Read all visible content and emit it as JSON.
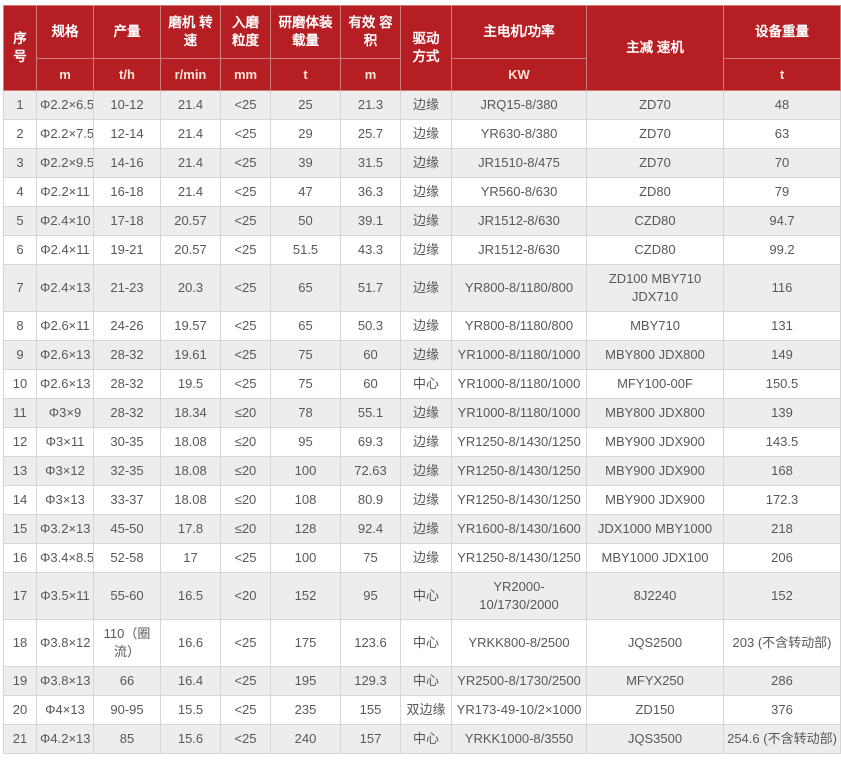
{
  "theme": {
    "header_bg": "#b51e23",
    "header_text": "#ffffff",
    "unit_text": "#ffe4d6",
    "row_alt_bg": "#ededed",
    "row_bg": "#ffffff",
    "body_text": "#58585a",
    "body_border": "#d6d6d6",
    "header_border": "#cf7d7a"
  },
  "table": {
    "column_keys": [
      "no",
      "spec",
      "output",
      "speed",
      "feed-size",
      "media-load",
      "volume",
      "drive",
      "motor",
      "reducer",
      "weight"
    ],
    "columns": [
      {
        "label": "序号",
        "unit": null
      },
      {
        "label": "规格",
        "unit": "m"
      },
      {
        "label": "产量",
        "unit": "t/h"
      },
      {
        "label": "磨机 转速",
        "unit": "r/min"
      },
      {
        "label": "入磨 粒度",
        "unit": "mm"
      },
      {
        "label": "研磨体装载量",
        "unit": "t"
      },
      {
        "label": "有效 容积",
        "unit": "m"
      },
      {
        "label": "驱动 方式",
        "unit": null
      },
      {
        "label": "主电机/功率",
        "unit": "KW"
      },
      {
        "label": "主减 速机",
        "unit": null
      },
      {
        "label": "设备重量",
        "unit": "t"
      }
    ],
    "rows": [
      [
        "1",
        "Φ2.2×6.5",
        "10-12",
        "21.4",
        "<25",
        "25",
        "21.3",
        "边缘",
        "JRQ15-8/380",
        "ZD70",
        "48"
      ],
      [
        "2",
        "Φ2.2×7.5",
        "12-14",
        "21.4",
        "<25",
        "29",
        "25.7",
        "边缘",
        "YR630-8/380",
        "ZD70",
        "63"
      ],
      [
        "3",
        "Φ2.2×9.5",
        "14-16",
        "21.4",
        "<25",
        "39",
        "31.5",
        "边缘",
        "JR1510-8/475",
        "ZD70",
        "70"
      ],
      [
        "4",
        "Φ2.2×11",
        "16-18",
        "21.4",
        "<25",
        "47",
        "36.3",
        "边缘",
        "YR560-8/630",
        "ZD80",
        "79"
      ],
      [
        "5",
        "Φ2.4×10",
        "17-18",
        "20.57",
        "<25",
        "50",
        "39.1",
        "边缘",
        "JR1512-8/630",
        "CZD80",
        "94.7"
      ],
      [
        "6",
        "Φ2.4×11",
        "19-21",
        "20.57",
        "<25",
        "51.5",
        "43.3",
        "边缘",
        "JR1512-8/630",
        "CZD80",
        "99.2"
      ],
      [
        "7",
        "Φ2.4×13",
        "21-23",
        "20.3",
        "<25",
        "65",
        "51.7",
        "边缘",
        "YR800-8/1180/800",
        "ZD100 MBY710 JDX710",
        "116"
      ],
      [
        "8",
        "Φ2.6×11",
        "24-26",
        "19.57",
        "<25",
        "65",
        "50.3",
        "边缘",
        "YR800-8/1180/800",
        "MBY710",
        "131"
      ],
      [
        "9",
        "Φ2.6×13",
        "28-32",
        "19.61",
        "<25",
        "75",
        "60",
        "边缘",
        "YR1000-8/1180/1000",
        "MBY800 JDX800",
        "149"
      ],
      [
        "10",
        "Φ2.6×13",
        "28-32",
        "19.5",
        "<25",
        "75",
        "60",
        "中心",
        "YR1000-8/1180/1000",
        "MFY100-00F",
        "150.5"
      ],
      [
        "11",
        "Φ3×9",
        "28-32",
        "18.34",
        "≤20",
        "78",
        "55.1",
        "边缘",
        "YR1000-8/1180/1000",
        "MBY800 JDX800",
        "139"
      ],
      [
        "12",
        "Φ3×11",
        "30-35",
        "18.08",
        "≤20",
        "95",
        "69.3",
        "边缘",
        "YR1250-8/1430/1250",
        "MBY900 JDX900",
        "143.5"
      ],
      [
        "13",
        "Φ3×12",
        "32-35",
        "18.08",
        "≤20",
        "100",
        "72.63",
        "边缘",
        "YR1250-8/1430/1250",
        "MBY900 JDX900",
        "168"
      ],
      [
        "14",
        "Φ3×13",
        "33-37",
        "18.08",
        "≤20",
        "108",
        "80.9",
        "边缘",
        "YR1250-8/1430/1250",
        "MBY900 JDX900",
        "172.3"
      ],
      [
        "15",
        "Φ3.2×13",
        "45-50",
        "17.8",
        "≤20",
        "128",
        "92.4",
        "边缘",
        "YR1600-8/1430/1600",
        "JDX1000 MBY1000",
        "218"
      ],
      [
        "16",
        "Φ3.4×8.5",
        "52-58",
        "17",
        "<25",
        "100",
        "75",
        "边缘",
        "YR1250-8/1430/1250",
        "MBY1000 JDX100",
        "206"
      ],
      [
        "17",
        "Φ3.5×11",
        "55-60",
        "16.5",
        "<20",
        "152",
        "95",
        "中心",
        "YR2000-10/1730/2000",
        "8J2240",
        "152"
      ],
      [
        "18",
        "Φ3.8×12",
        "110（圈流）",
        "16.6",
        "<25",
        "175",
        "123.6",
        "中心",
        "YRKK800-8/2500",
        "JQS2500",
        "203 (不含转动部)"
      ],
      [
        "19",
        "Φ3.8×13",
        "66",
        "16.4",
        "<25",
        "195",
        "129.3",
        "中心",
        "YR2500-8/1730/2500",
        "MFYX250",
        "286"
      ],
      [
        "20",
        "Φ4×13",
        "90-95",
        "15.5",
        "<25",
        "235",
        "155",
        "双边缘",
        "YR173-49-10/2×1000",
        "ZD150",
        "376"
      ],
      [
        "21",
        "Φ4.2×13",
        "85",
        "15.6",
        "<25",
        "240",
        "157",
        "中心",
        "YRKK1000-8/3550",
        "JQS3500",
        "254.6 (不含转动部)"
      ]
    ]
  }
}
